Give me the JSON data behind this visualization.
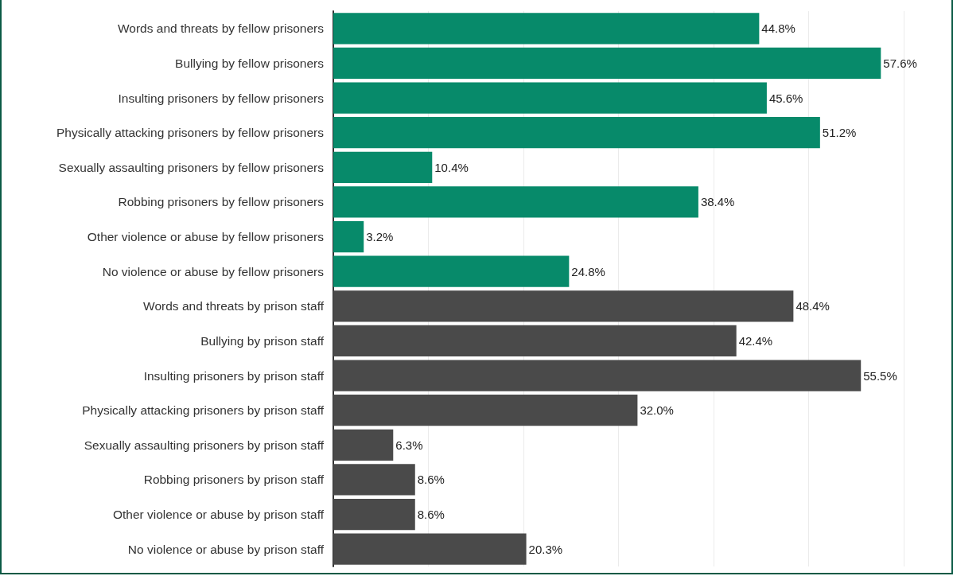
{
  "chart_data": {
    "type": "bar",
    "orientation": "horizontal",
    "categories": [
      "Words and threats by fellow prisoners",
      "Bullying by fellow prisoners",
      "Insulting prisoners by fellow prisoners",
      "Physically attacking prisoners by fellow prisoners",
      "Sexually assaulting prisoners by fellow prisoners",
      "Robbing prisoners by fellow prisoners",
      "Other violence or abuse by fellow prisoners",
      "No violence or abuse by fellow prisoners",
      "Words and threats by prison staff",
      "Bullying by prison staff",
      "Insulting prisoners by prison staff",
      "Physically attacking prisoners by prison staff",
      "Sexually assaulting prisoners by prison staff",
      "Robbing prisoners by prison staff",
      "Other violence or abuse by prison staff",
      "No violence or abuse by prison staff"
    ],
    "values": [
      44.8,
      57.6,
      45.6,
      51.2,
      10.4,
      38.4,
      3.2,
      24.8,
      48.4,
      42.4,
      55.5,
      32.0,
      6.3,
      8.6,
      8.6,
      20.3
    ],
    "value_labels": [
      "44.8%",
      "57.6%",
      "45.6%",
      "51.2%",
      "10.4%",
      "38.4%",
      "3.2%",
      "24.8%",
      "48.4%",
      "42.4%",
      "55.5%",
      "32.0%",
      "6.3%",
      "8.6%",
      "8.6%",
      "20.3%"
    ],
    "colors": [
      "#078a6a",
      "#078a6a",
      "#078a6a",
      "#078a6a",
      "#078a6a",
      "#078a6a",
      "#078a6a",
      "#078a6a",
      "#4a4a4a",
      "#4a4a4a",
      "#4a4a4a",
      "#4a4a4a",
      "#4a4a4a",
      "#4a4a4a",
      "#4a4a4a",
      "#4a4a4a"
    ],
    "xlim": [
      0,
      60
    ],
    "xticks": [
      {
        "value": 0,
        "label": null
      },
      {
        "value": 10,
        "label": null
      },
      {
        "value": 20,
        "label": null
      },
      {
        "value": 30,
        "label": null
      },
      {
        "value": 40,
        "label": null
      },
      {
        "value": 50,
        "label": null
      },
      {
        "value": 60,
        "label": null
      }
    ],
    "grid": "x",
    "tick_labels": "y"
  }
}
